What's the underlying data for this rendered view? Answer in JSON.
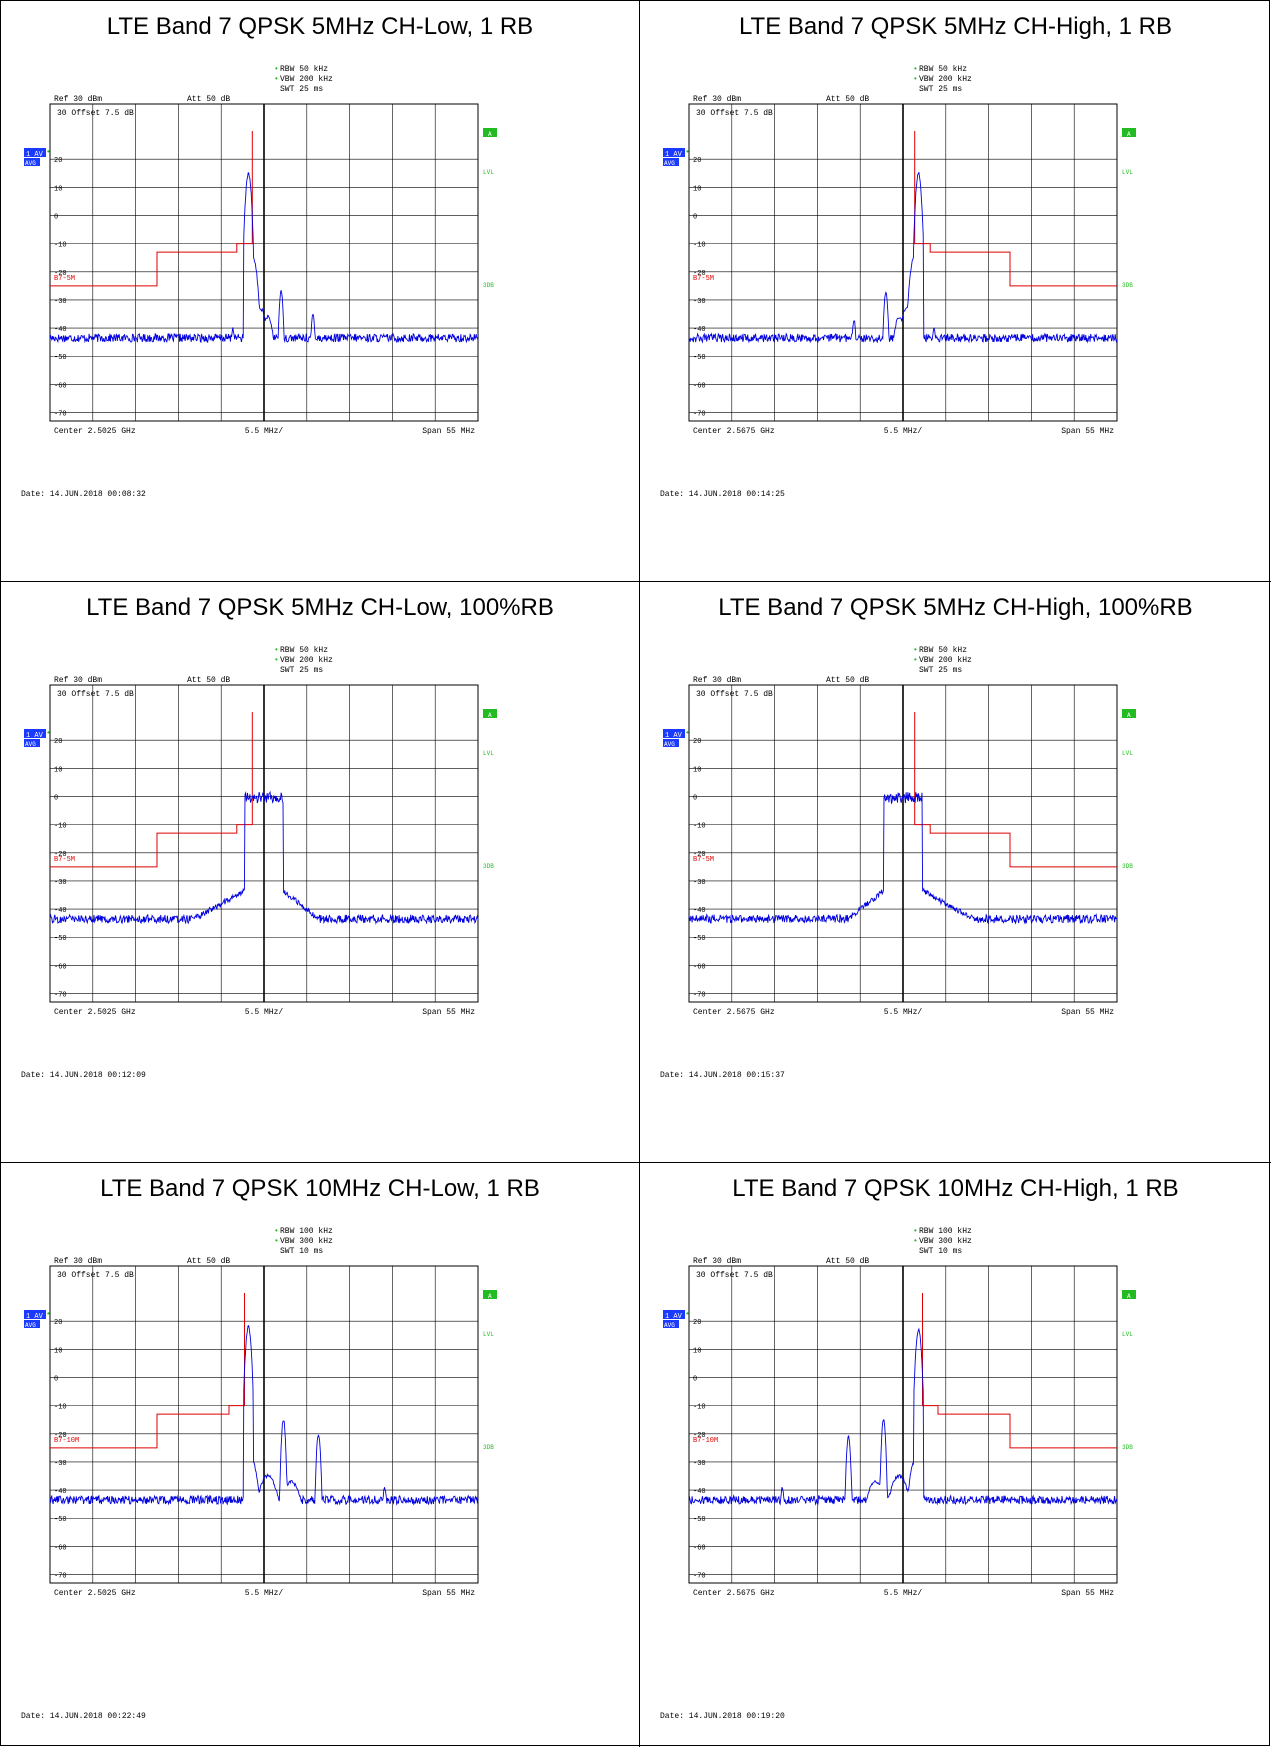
{
  "page": {
    "title": ""
  },
  "plots": [
    {
      "title": "LTE Band 7 QPSK 5MHz CH-Low, 1 RB",
      "rbw": "RBW 50 kHz",
      "vbw": "VBW 200 kHz",
      "swt": "SWT 25 ms",
      "ref": "Ref  30 dBm",
      "att": "Att  50 dB",
      "offset": "30  Offset   7.5  dB",
      "trace_badge": "1 AV",
      "avg_badge": "AVG",
      "center": "Center  2.5025 GHz",
      "div": "5.5 MHz/",
      "span": "Span  55 MHz",
      "date": "Date: 14.JUN.2018  00:08:32",
      "limit_label": "B7-5M",
      "side_a": "A",
      "side_lvl": "LVL",
      "side_3db": "3DB"
    },
    {
      "title": "LTE Band 7 QPSK 5MHz CH-High, 1 RB",
      "rbw": "RBW 50 kHz",
      "vbw": "VBW 200 kHz",
      "swt": "SWT 25 ms",
      "ref": "Ref  30 dBm",
      "att": "Att  50 dB",
      "offset": "30  Offset   7.5  dB",
      "trace_badge": "1 AV",
      "avg_badge": "AVG",
      "center": "Center  2.5675 GHz",
      "div": "5.5 MHz/",
      "span": "Span  55 MHz",
      "date": "Date: 14.JUN.2018  00:14:25",
      "limit_label": "B7-5M",
      "side_a": "A",
      "side_lvl": "LVL",
      "side_3db": "3DB"
    },
    {
      "title": "LTE Band 7 QPSK 5MHz CH-Low, 100%RB",
      "rbw": "RBW 50 kHz",
      "vbw": "VBW 200 kHz",
      "swt": "SWT 25 ms",
      "ref": "Ref  30 dBm",
      "att": "Att  50 dB",
      "offset": "30  Offset   7.5  dB",
      "trace_badge": "1 AV",
      "avg_badge": "AVG",
      "center": "Center  2.5025 GHz",
      "div": "5.5 MHz/",
      "span": "Span  55 MHz",
      "date": "Date: 14.JUN.2018  00:12:09",
      "limit_label": "B7-5M",
      "side_a": "A",
      "side_lvl": "LVL",
      "side_3db": "3DB"
    },
    {
      "title": "LTE Band 7 QPSK 5MHz CH-High, 100%RB",
      "rbw": "RBW 50 kHz",
      "vbw": "VBW 200 kHz",
      "swt": "SWT 25 ms",
      "ref": "Ref  30 dBm",
      "att": "Att  50 dB",
      "offset": "30  Offset   7.5  dB",
      "trace_badge": "1 AV",
      "avg_badge": "AVG",
      "center": "Center  2.5675 GHz",
      "div": "5.5 MHz/",
      "span": "Span  55 MHz",
      "date": "Date: 14.JUN.2018  00:15:37",
      "limit_label": "B7-5M",
      "side_a": "A",
      "side_lvl": "LVL",
      "side_3db": "3DB"
    },
    {
      "title": "LTE Band 7 QPSK 10MHz CH-Low, 1 RB",
      "rbw": "RBW 100 kHz",
      "vbw": "VBW 300 kHz",
      "swt": "SWT 10 ms",
      "ref": "Ref  30 dBm",
      "att": "Att  50 dB",
      "offset": "30  Offset   7.5  dB",
      "trace_badge": "1 AV",
      "avg_badge": "AVG",
      "center": "Center  2.5025 GHz",
      "div": "5.5 MHz/",
      "span": "Span  55 MHz",
      "date": "Date: 14.JUN.2018  00:22:49",
      "limit_label": "B7-10M",
      "side_a": "A",
      "side_lvl": "LVL",
      "side_3db": "3DB"
    },
    {
      "title": "LTE Band 7 QPSK 10MHz CH-High, 1 RB",
      "rbw": "RBW 100 kHz",
      "vbw": "VBW 300 kHz",
      "swt": "SWT 10 ms",
      "ref": "Ref  30 dBm",
      "att": "Att  50 dB",
      "offset": "30  Offset   7.5  dB",
      "trace_badge": "1 AV",
      "avg_badge": "AVG",
      "center": "Center  2.5675 GHz",
      "div": "5.5 MHz/",
      "span": "Span  55 MHz",
      "date": "Date: 14.JUN.2018  00:19:20",
      "limit_label": "B7-10M",
      "side_a": "A",
      "side_lvl": "LVL",
      "side_3db": "3DB"
    }
  ],
  "colors": {
    "trace": "#0000e0",
    "limit": "#e00000",
    "badge_bg": "#1a3aff",
    "marker_green": "#22bb22",
    "grid": "#000000"
  },
  "chart_data": [
    {
      "type": "line",
      "title": "LTE Band 7 QPSK 5MHz CH-Low, 1 RB",
      "xlim_mhz_offset": [
        -27.5,
        27.5
      ],
      "ylim": [
        -73,
        30
      ],
      "y_ticks": [
        20,
        10,
        0,
        -10,
        -20,
        -30,
        -40,
        -50,
        -60,
        -70
      ],
      "limit_line": {
        "x": [
          -27.5,
          -13.75,
          -13.75,
          -3.5,
          -3.5,
          -1.5,
          -1.5
        ],
        "y": [
          -25,
          -25,
          -13,
          -13,
          -10,
          -10,
          30
        ]
      },
      "trace": {
        "floor": -43.5,
        "peaks": [
          [
            -2.0,
            15,
            0.4
          ],
          [
            -1.4,
            -15,
            0.6
          ],
          [
            -0.5,
            -33,
            1.0
          ],
          [
            0.5,
            -36,
            0.8
          ],
          [
            2.2,
            -27,
            0.3
          ],
          [
            6.3,
            -35,
            0.3
          ],
          [
            -4.0,
            -40,
            0.3
          ]
        ]
      }
    },
    {
      "type": "line",
      "title": "LTE Band 7 QPSK 5MHz CH-High, 1 RB",
      "xlim_mhz_offset": [
        -27.5,
        27.5
      ],
      "ylim": [
        -73,
        30
      ],
      "y_ticks": [
        20,
        10,
        0,
        -10,
        -20,
        -30,
        -40,
        -50,
        -60,
        -70
      ],
      "limit_line": {
        "x": [
          1.5,
          1.5,
          3.5,
          3.5,
          13.75,
          13.75,
          27.5
        ],
        "y": [
          30,
          -10,
          -10,
          -13,
          -13,
          -25,
          -25
        ]
      },
      "trace": {
        "floor": -43.5,
        "peaks": [
          [
            2.0,
            15,
            0.4
          ],
          [
            1.4,
            -15,
            0.6
          ],
          [
            0.5,
            -33,
            1.0
          ],
          [
            -0.5,
            -36,
            0.8
          ],
          [
            -2.2,
            -27,
            0.3
          ],
          [
            -6.3,
            -37,
            0.3
          ],
          [
            4.0,
            -40,
            0.3
          ]
        ]
      }
    },
    {
      "type": "line",
      "title": "LTE Band 7 QPSK 5MHz CH-Low, 100%RB",
      "xlim_mhz_offset": [
        -27.5,
        27.5
      ],
      "ylim": [
        -73,
        30
      ],
      "y_ticks": [
        20,
        10,
        0,
        -10,
        -20,
        -30,
        -40,
        -50,
        -60,
        -70
      ],
      "limit_line": {
        "x": [
          -27.5,
          -13.75,
          -13.75,
          -3.5,
          -3.5,
          -1.5,
          -1.5
        ],
        "y": [
          -25,
          -25,
          -13,
          -13,
          -10,
          -10,
          30
        ]
      },
      "trace": {
        "floor": -43.5,
        "band": [
          -2.5,
          2.5,
          0
        ],
        "skirt": [
          -9,
          7
        ]
      }
    },
    {
      "type": "line",
      "title": "LTE Band 7 QPSK 5MHz CH-High, 100%RB",
      "xlim_mhz_offset": [
        -27.5,
        27.5
      ],
      "ylim": [
        -73,
        30
      ],
      "y_ticks": [
        20,
        10,
        0,
        -10,
        -20,
        -30,
        -40,
        -50,
        -60,
        -70
      ],
      "limit_line": {
        "x": [
          1.5,
          1.5,
          3.5,
          3.5,
          13.75,
          13.75,
          27.5
        ],
        "y": [
          30,
          -10,
          -10,
          -13,
          -13,
          -25,
          -25
        ]
      },
      "trace": {
        "floor": -43.5,
        "band": [
          -2.5,
          2.5,
          0
        ],
        "skirt": [
          -7,
          9
        ]
      }
    },
    {
      "type": "line",
      "title": "LTE Band 7 QPSK 10MHz CH-Low, 1 RB",
      "xlim_mhz_offset": [
        -27.5,
        27.5
      ],
      "ylim": [
        -73,
        30
      ],
      "y_ticks": [
        20,
        10,
        0,
        -10,
        -20,
        -30,
        -40,
        -50,
        -60,
        -70
      ],
      "limit_line": {
        "x": [
          -27.5,
          -13.75,
          -13.75,
          -4.5,
          -4.5,
          -2.5,
          -2.5
        ],
        "y": [
          -25,
          -25,
          -13,
          -13,
          -10,
          -10,
          30
        ]
      },
      "trace": {
        "floor": -43.5,
        "peaks": [
          [
            -2.0,
            18,
            0.4
          ],
          [
            2.5,
            -15,
            0.3
          ],
          [
            7.0,
            -20,
            0.3
          ],
          [
            -1.5,
            -30,
            0.8
          ],
          [
            0.5,
            -35,
            1.5
          ],
          [
            3.5,
            -37,
            1.5
          ],
          [
            15.5,
            -39,
            0.3
          ]
        ]
      }
    },
    {
      "type": "line",
      "title": "LTE Band 7 QPSK 10MHz CH-High, 1 RB",
      "xlim_mhz_offset": [
        -27.5,
        27.5
      ],
      "ylim": [
        -73,
        30
      ],
      "y_ticks": [
        20,
        10,
        0,
        -10,
        -20,
        -30,
        -40,
        -50,
        -60,
        -70
      ],
      "limit_line": {
        "x": [
          2.5,
          2.5,
          4.5,
          4.5,
          13.75,
          13.75,
          27.5
        ],
        "y": [
          30,
          -10,
          -10,
          -13,
          -13,
          -25,
          -25
        ]
      },
      "trace": {
        "floor": -43.5,
        "peaks": [
          [
            2.0,
            17,
            0.4
          ],
          [
            -2.5,
            -15,
            0.3
          ],
          [
            -7.0,
            -21,
            0.3
          ],
          [
            1.5,
            -30,
            0.8
          ],
          [
            -0.5,
            -35,
            1.5
          ],
          [
            -3.5,
            -37,
            1.5
          ],
          [
            -15.5,
            -39,
            0.3
          ]
        ]
      }
    }
  ]
}
